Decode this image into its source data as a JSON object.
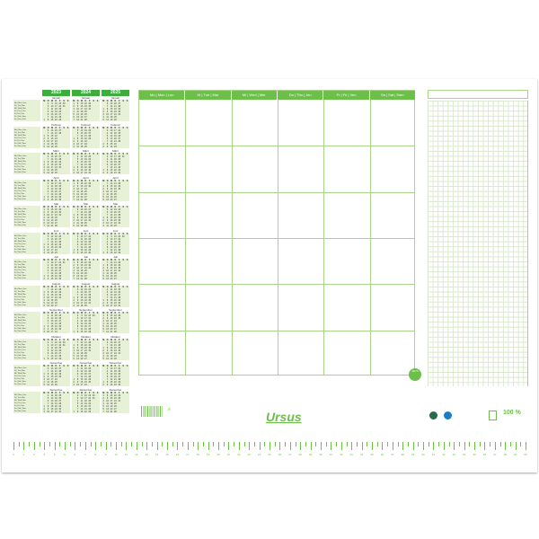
{
  "calendar": {
    "years": [
      "2023",
      "2024",
      "2025"
    ],
    "months": [
      "Januar",
      "Februar",
      "März",
      "April",
      "Mai",
      "Juni",
      "Juli",
      "August",
      "September",
      "Oktober",
      "November",
      "Dezember"
    ],
    "day_headers": [
      "M",
      "D",
      "M",
      "D",
      "F",
      "S",
      "S"
    ],
    "legend_rows": [
      "Mo | Mon | Lun",
      "Di | Tue | Mar",
      "Mi | Wed | Mer",
      "Do | Thu | Jeu",
      "Fr | Fri | Ven",
      "Sa | Sat | Sam",
      "So | Sun | Dim"
    ]
  },
  "week_planner": {
    "columns": [
      "Mo | Mon | Lun",
      "Di | Tue | Mar",
      "Mi | Wed | Mer",
      "Do | Thu | Jeu",
      "Fr | Fri | Ven",
      "Sa | Sat | Sam"
    ],
    "rows": 6
  },
  "brand": {
    "logo": "Ursus",
    "badge": "100 %",
    "accent": "#6cc04a",
    "year_header_color": "#3cae3c"
  },
  "ruler": {
    "unit": "cm",
    "start": 0,
    "end": 50
  }
}
